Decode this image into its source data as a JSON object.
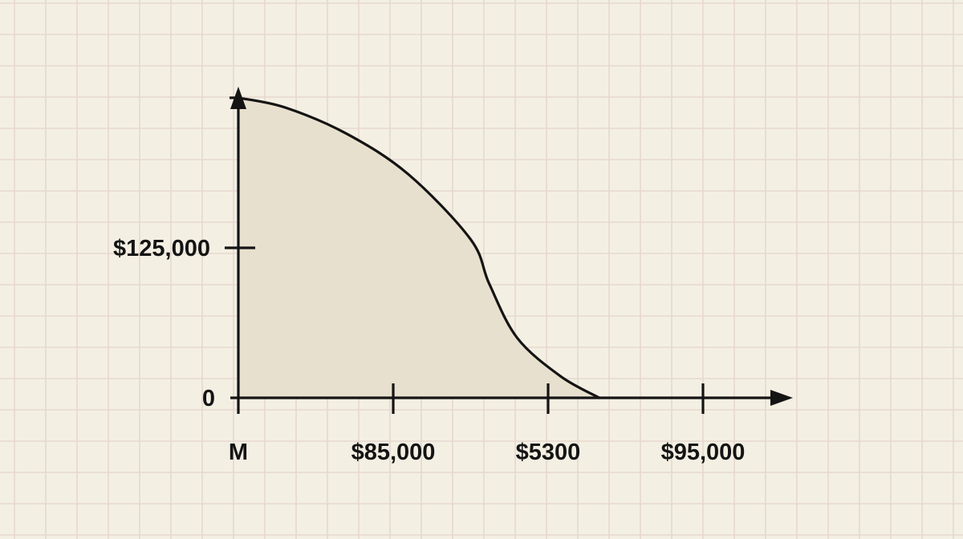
{
  "colors": {
    "paper": "#f4efe3",
    "grid": "#e6d8cf",
    "area_fill": "#e8e0ce",
    "ink": "#141414"
  },
  "chart_data": {
    "type": "area",
    "title": "",
    "xlabel": "",
    "ylabel": "",
    "grid": true,
    "legend": "none",
    "x_ticks": [
      "M",
      "$85,000",
      "$5300",
      "$95,000"
    ],
    "y_ticks": [
      {
        "value": 0,
        "label": "0"
      },
      {
        "value": 125000,
        "label": "$125,000"
      }
    ],
    "ylim": [
      0,
      270000
    ],
    "series": [
      {
        "values": [
          {
            "x": 0.0,
            "y": 250000
          },
          {
            "x": 0.3,
            "y": 242000
          },
          {
            "x": 0.7,
            "y": 220000
          },
          {
            "x": 1.1,
            "y": 186000
          },
          {
            "x": 1.5,
            "y": 132000
          },
          {
            "x": 1.62,
            "y": 95000
          },
          {
            "x": 1.8,
            "y": 50000
          },
          {
            "x": 2.08,
            "y": 18000
          },
          {
            "x": 2.33,
            "y": 0
          }
        ]
      }
    ]
  }
}
